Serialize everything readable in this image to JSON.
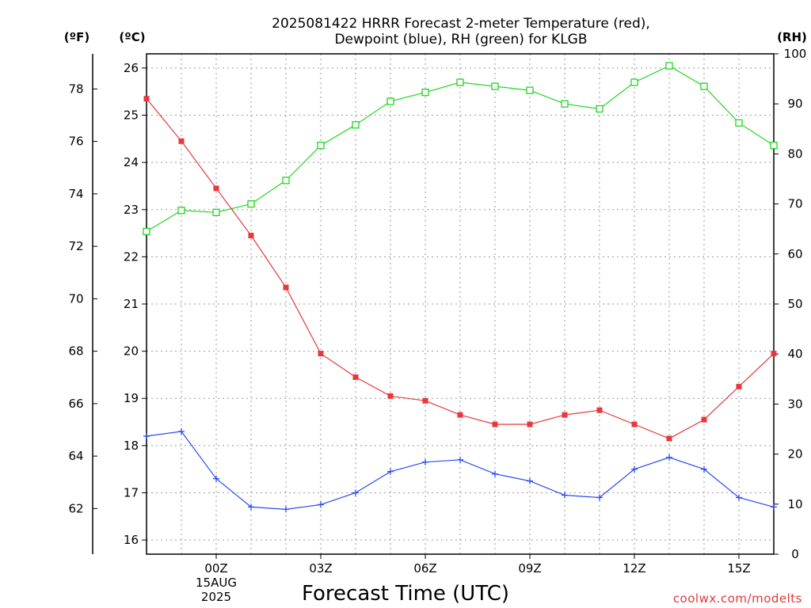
{
  "title_lines": [
    "2025081422 HRRR Forecast 2-meter Temperature (red),",
    "Dewpoint (blue), RH (green) for KLGB"
  ],
  "unit_labels": {
    "fahrenheit": "(ºF)",
    "celsius": "(ºC)",
    "rh": "(RH)"
  },
  "credit": "coolwx.com/modelts",
  "colors": {
    "temperature": "#e8383c",
    "dewpoint": "#2a4bf0",
    "rh": "#22d622",
    "grid": "#9a9a9a"
  },
  "chart_data": {
    "type": "line",
    "title": "2025081422 HRRR Forecast 2-meter Temperature (red), Dewpoint (blue), RH (green) for KLGB",
    "xlabel": "Forecast Time (UTC)",
    "x_hours": [
      -2,
      -1,
      0,
      1,
      2,
      3,
      4,
      5,
      6,
      7,
      8,
      9,
      10,
      11,
      12,
      13,
      14,
      15,
      16
    ],
    "x_range": [
      -2,
      16
    ],
    "x_ticks": [
      {
        "x": 0,
        "lines": [
          "00Z",
          "15AUG",
          "2025"
        ]
      },
      {
        "x": 3,
        "lines": [
          "03Z"
        ]
      },
      {
        "x": 6,
        "lines": [
          "06Z"
        ]
      },
      {
        "x": 9,
        "lines": [
          "09Z"
        ]
      },
      {
        "x": 12,
        "lines": [
          "12Z"
        ]
      },
      {
        "x": 15,
        "lines": [
          "15Z"
        ]
      }
    ],
    "y_celsius": {
      "range": [
        15.7,
        26.3
      ],
      "ticks": [
        16,
        17,
        18,
        19,
        20,
        21,
        22,
        23,
        24,
        25,
        26
      ]
    },
    "y_fahrenheit": {
      "ticks": [
        62,
        64,
        66,
        68,
        70,
        72,
        74,
        76,
        78
      ]
    },
    "y_rh": {
      "range": [
        0,
        100
      ],
      "ticks": [
        0,
        10,
        20,
        30,
        40,
        50,
        60,
        70,
        80,
        90,
        100
      ]
    },
    "grid": true,
    "series": [
      {
        "name": "Temperature",
        "axis": "celsius",
        "color": "#e8383c",
        "marker": "filled-square",
        "values": [
          25.35,
          24.45,
          23.45,
          22.45,
          21.35,
          19.95,
          19.45,
          19.05,
          18.95,
          18.65,
          18.45,
          18.45,
          18.65,
          18.75,
          18.45,
          18.15,
          18.55,
          19.25,
          19.95
        ]
      },
      {
        "name": "Dewpoint",
        "axis": "celsius",
        "color": "#2a4bf0",
        "marker": "plus",
        "values": [
          18.2,
          18.3,
          17.3,
          16.7,
          16.65,
          16.75,
          17.0,
          17.45,
          17.65,
          17.7,
          17.4,
          17.25,
          16.95,
          16.9,
          17.5,
          17.75,
          17.5,
          16.9,
          16.7
        ]
      },
      {
        "name": "RH",
        "axis": "rh",
        "color": "#22d622",
        "marker": "open-square",
        "values": [
          64.5,
          68.7,
          68.3,
          70.0,
          74.7,
          81.7,
          85.8,
          90.5,
          92.3,
          94.3,
          93.5,
          92.7,
          90.0,
          89.0,
          94.3,
          97.6,
          93.5,
          86.2,
          81.7
        ]
      }
    ]
  }
}
